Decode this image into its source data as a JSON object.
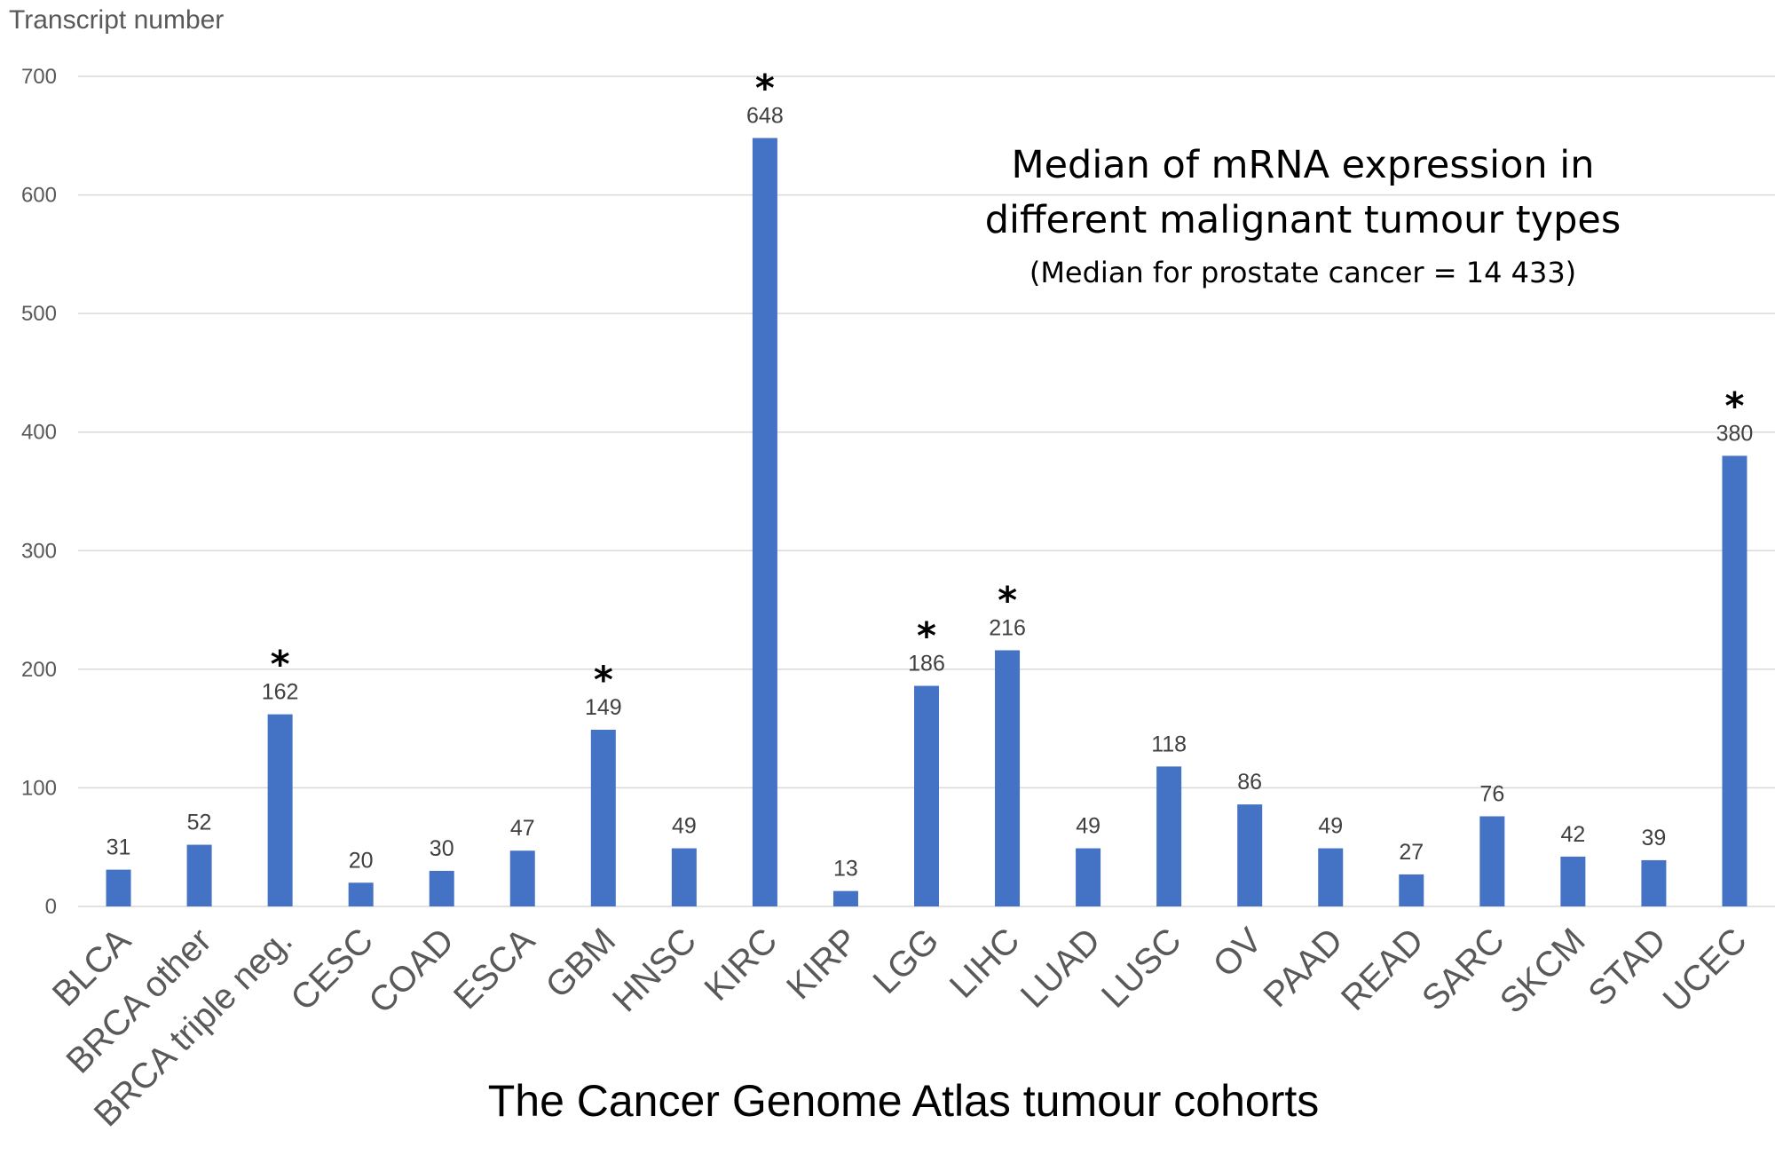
{
  "chart_data": {
    "type": "bar",
    "ylabel": "Transcript number",
    "xlabel": "The Cancer Genome Atlas tumour cohorts",
    "ylim": [
      0,
      700
    ],
    "yticks": [
      0,
      100,
      200,
      300,
      400,
      500,
      600,
      700
    ],
    "grid": true,
    "bar_color": "#4472C4",
    "categories": [
      "BLCA",
      "BRCA other",
      "BRCA triple neg.",
      "CESC",
      "COAD",
      "ESCA",
      "GBM",
      "HNSC",
      "KIRC",
      "KIRP",
      "LGG",
      "LIHC",
      "LUAD",
      "LUSC",
      "OV",
      "PAAD",
      "READ",
      "SARC",
      "SKCM",
      "STAD",
      "UCEC"
    ],
    "values": [
      31,
      52,
      162,
      20,
      30,
      47,
      149,
      49,
      648,
      13,
      186,
      216,
      49,
      118,
      86,
      49,
      27,
      76,
      42,
      39,
      380
    ],
    "significance_marker": "*",
    "significant": [
      "BRCA triple neg.",
      "GBM",
      "KIRC",
      "LGG",
      "LIHC",
      "UCEC"
    ],
    "annotation": {
      "line1": "Median of mRNA expression in",
      "line2": "different malignant tumour types",
      "line3": "(Median for prostate cancer = 14 433)"
    }
  }
}
